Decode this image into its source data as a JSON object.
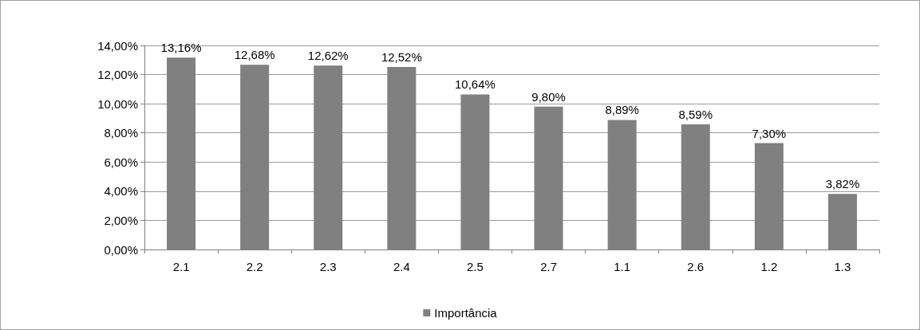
{
  "chart_data": {
    "type": "bar",
    "categories": [
      "2.1",
      "2.2",
      "2.3",
      "2.4",
      "2.5",
      "2.7",
      "1.1",
      "2.6",
      "1.2",
      "1.3"
    ],
    "series": [
      {
        "name": "Importância",
        "color": "#808080",
        "values": [
          13.16,
          12.68,
          12.62,
          12.52,
          10.64,
          9.8,
          8.89,
          8.59,
          7.3,
          3.82
        ],
        "value_labels": [
          "13,16%",
          "12,68%",
          "12,62%",
          "12,52%",
          "10,64%",
          "9,80%",
          "8,89%",
          "8,59%",
          "7,30%",
          "3,82%"
        ]
      }
    ],
    "ylim": [
      0,
      14
    ],
    "yticks": [
      {
        "value": 0,
        "label": "0,00%"
      },
      {
        "value": 2,
        "label": "2,00%"
      },
      {
        "value": 4,
        "label": "4,00%"
      },
      {
        "value": 6,
        "label": "6,00%"
      },
      {
        "value": 8,
        "label": "8,00%"
      },
      {
        "value": 10,
        "label": "10,00%"
      },
      {
        "value": 12,
        "label": "12,00%"
      },
      {
        "value": 14,
        "label": "14,00%"
      }
    ],
    "grid": "y",
    "legend": "bottom"
  }
}
